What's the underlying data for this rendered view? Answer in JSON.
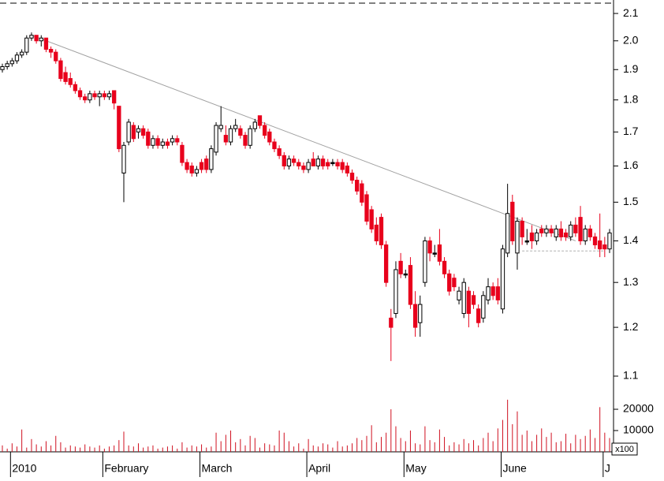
{
  "chart_data": {
    "type": "candlestick",
    "categories": [
      null,
      null,
      "2010",
      null,
      null,
      null,
      null,
      null,
      null,
      null,
      null,
      null,
      null,
      null,
      null,
      null,
      null,
      null,
      null,
      null,
      null,
      "February",
      null,
      null,
      null,
      null,
      null,
      null,
      null,
      null,
      null,
      null,
      null,
      null,
      null,
      null,
      null,
      null,
      null,
      null,
      null,
      "March",
      null,
      null,
      null,
      null,
      null,
      null,
      null,
      null,
      null,
      null,
      null,
      null,
      null,
      null,
      null,
      null,
      null,
      null,
      null,
      null,
      null,
      "April",
      null,
      null,
      null,
      null,
      null,
      null,
      null,
      null,
      null,
      null,
      null,
      null,
      null,
      null,
      null,
      null,
      null,
      null,
      null,
      "May",
      null,
      null,
      null,
      null,
      null,
      null,
      null,
      null,
      null,
      null,
      null,
      null,
      null,
      null,
      null,
      null,
      null,
      null,
      null,
      "June",
      null,
      null,
      null,
      null,
      null,
      null,
      null,
      null,
      null,
      null,
      null,
      null,
      null,
      null,
      null,
      null,
      null,
      null,
      null,
      null,
      "J",
      null
    ],
    "open": [
      1.9,
      1.91,
      1.92,
      1.93,
      1.95,
      1.96,
      2.01,
      2.02,
      2.0,
      2.01,
      1.97,
      1.96,
      1.93,
      1.89,
      1.87,
      1.85,
      1.83,
      1.81,
      1.8,
      1.82,
      1.81,
      1.82,
      1.81,
      1.83,
      1.78,
      1.58,
      1.67,
      1.72,
      1.7,
      1.71,
      1.7,
      1.66,
      1.68,
      1.66,
      1.67,
      1.67,
      1.68,
      1.66,
      1.61,
      1.6,
      1.58,
      1.61,
      1.62,
      1.59,
      1.64,
      1.71,
      1.69,
      1.67,
      1.71,
      1.71,
      1.69,
      1.66,
      1.71,
      1.75,
      1.72,
      1.7,
      1.67,
      1.65,
      1.63,
      1.6,
      1.62,
      1.61,
      1.6,
      1.59,
      1.62,
      1.6,
      1.62,
      1.61,
      1.61,
      1.61,
      1.61,
      1.6,
      1.58,
      1.56,
      1.55,
      1.52,
      1.48,
      1.44,
      1.46,
      1.39,
      1.22,
      1.23,
      1.35,
      1.32,
      1.34,
      1.25,
      1.21,
      1.3,
      1.4,
      1.37,
      1.39,
      1.35,
      1.32,
      1.31,
      1.26,
      1.23,
      1.28,
      1.27,
      1.24,
      1.22,
      1.26,
      1.29,
      1.29,
      1.24,
      1.37,
      1.5,
      1.37,
      1.45,
      1.4,
      1.42,
      1.4,
      1.43,
      1.42,
      1.43,
      1.41,
      1.43,
      1.42,
      1.41,
      1.44,
      1.46,
      1.4,
      1.43,
      1.41,
      1.4,
      1.39,
      1.38
    ],
    "high": [
      1.92,
      1.93,
      1.94,
      1.96,
      1.97,
      2.02,
      2.03,
      2.02,
      2.02,
      2.01,
      1.98,
      1.97,
      1.94,
      1.91,
      1.89,
      1.86,
      1.84,
      1.82,
      1.83,
      1.83,
      1.83,
      1.83,
      1.83,
      1.83,
      1.78,
      1.67,
      1.74,
      1.73,
      1.72,
      1.72,
      1.71,
      1.69,
      1.69,
      1.68,
      1.68,
      1.69,
      1.69,
      1.67,
      1.62,
      1.61,
      1.6,
      1.62,
      1.63,
      1.66,
      1.73,
      1.78,
      1.72,
      1.72,
      1.74,
      1.72,
      1.7,
      1.72,
      1.74,
      1.75,
      1.73,
      1.71,
      1.68,
      1.66,
      1.64,
      1.63,
      1.63,
      1.62,
      1.61,
      1.62,
      1.64,
      1.63,
      1.63,
      1.62,
      1.62,
      1.62,
      1.62,
      1.61,
      1.59,
      1.57,
      1.56,
      1.53,
      1.49,
      1.46,
      1.47,
      1.4,
      1.24,
      1.35,
      1.37,
      1.33,
      1.36,
      1.28,
      1.27,
      1.41,
      1.41,
      1.39,
      1.43,
      1.36,
      1.33,
      1.32,
      1.29,
      1.31,
      1.29,
      1.28,
      1.25,
      1.28,
      1.31,
      1.3,
      1.31,
      1.39,
      1.55,
      1.52,
      1.46,
      1.46,
      1.43,
      1.44,
      1.43,
      1.44,
      1.44,
      1.44,
      1.44,
      1.45,
      1.43,
      1.45,
      1.46,
      1.49,
      1.44,
      1.44,
      1.42,
      1.47,
      1.41,
      1.43
    ],
    "low": [
      1.89,
      1.9,
      1.91,
      1.92,
      1.94,
      1.95,
      2.0,
      1.99,
      1.98,
      1.96,
      1.94,
      1.92,
      1.86,
      1.85,
      1.84,
      1.82,
      1.8,
      1.79,
      1.79,
      1.8,
      1.78,
      1.8,
      1.8,
      1.77,
      1.64,
      1.5,
      1.66,
      1.67,
      1.68,
      1.68,
      1.65,
      1.65,
      1.65,
      1.65,
      1.65,
      1.66,
      1.66,
      1.6,
      1.58,
      1.57,
      1.57,
      1.58,
      1.58,
      1.58,
      1.63,
      1.7,
      1.66,
      1.66,
      1.7,
      1.68,
      1.65,
      1.65,
      1.7,
      1.71,
      1.68,
      1.66,
      1.64,
      1.62,
      1.59,
      1.59,
      1.6,
      1.59,
      1.58,
      1.58,
      1.6,
      1.59,
      1.59,
      1.59,
      1.6,
      1.59,
      1.58,
      1.57,
      1.55,
      1.52,
      1.49,
      1.44,
      1.42,
      1.39,
      1.38,
      1.29,
      1.13,
      1.22,
      1.31,
      1.31,
      1.24,
      1.18,
      1.18,
      1.29,
      1.35,
      1.36,
      1.34,
      1.31,
      1.27,
      1.28,
      1.25,
      1.22,
      1.2,
      1.24,
      1.2,
      1.21,
      1.25,
      1.26,
      1.25,
      1.23,
      1.36,
      1.39,
      1.33,
      1.39,
      1.39,
      1.38,
      1.39,
      1.41,
      1.41,
      1.41,
      1.4,
      1.4,
      1.4,
      1.4,
      1.41,
      1.39,
      1.39,
      1.4,
      1.38,
      1.36,
      1.36,
      1.37
    ],
    "close": [
      1.91,
      1.92,
      1.93,
      1.95,
      1.96,
      2.01,
      2.02,
      2.0,
      2.01,
      1.97,
      1.96,
      1.93,
      1.87,
      1.86,
      1.85,
      1.83,
      1.81,
      1.8,
      1.82,
      1.81,
      1.82,
      1.81,
      1.82,
      1.79,
      1.65,
      1.66,
      1.73,
      1.68,
      1.71,
      1.69,
      1.66,
      1.68,
      1.66,
      1.67,
      1.66,
      1.68,
      1.67,
      1.61,
      1.59,
      1.58,
      1.59,
      1.59,
      1.59,
      1.65,
      1.72,
      1.72,
      1.67,
      1.71,
      1.72,
      1.69,
      1.66,
      1.71,
      1.73,
      1.72,
      1.69,
      1.67,
      1.65,
      1.63,
      1.6,
      1.62,
      1.61,
      1.6,
      1.59,
      1.61,
      1.6,
      1.62,
      1.6,
      1.6,
      1.61,
      1.6,
      1.59,
      1.58,
      1.56,
      1.53,
      1.5,
      1.45,
      1.43,
      1.4,
      1.39,
      1.3,
      1.2,
      1.33,
      1.32,
      1.32,
      1.25,
      1.2,
      1.25,
      1.4,
      1.37,
      1.37,
      1.35,
      1.32,
      1.28,
      1.29,
      1.28,
      1.3,
      1.23,
      1.25,
      1.21,
      1.27,
      1.29,
      1.27,
      1.26,
      1.38,
      1.47,
      1.4,
      1.45,
      1.41,
      1.4,
      1.4,
      1.42,
      1.42,
      1.43,
      1.42,
      1.43,
      1.41,
      1.41,
      1.44,
      1.42,
      1.4,
      1.43,
      1.41,
      1.39,
      1.38,
      1.38,
      1.42
    ],
    "volume": [
      3000,
      1500,
      4000,
      2500,
      10500,
      2000,
      6000,
      3500,
      2500,
      5000,
      3000,
      7500,
      4500,
      2000,
      3000,
      2500,
      2000,
      3500,
      2500,
      2000,
      3000,
      1500,
      2500,
      3000,
      5500,
      9500,
      3000,
      2500,
      4000,
      2000,
      2500,
      3000,
      1500,
      2000,
      2500,
      3000,
      1500,
      4500,
      2000,
      3000,
      2500,
      3500,
      2000,
      2500,
      9000,
      5000,
      8000,
      10000,
      4500,
      6000,
      3000,
      7500,
      6500,
      2000,
      4000,
      3500,
      3000,
      10000,
      9000,
      5000,
      2500,
      4000,
      1500,
      6000,
      3000,
      2500,
      4000,
      3500,
      2000,
      5000,
      2500,
      3000,
      4000,
      6500,
      5500,
      7500,
      12500,
      4500,
      7000,
      9000,
      20000,
      12000,
      6500,
      5000,
      10000,
      4000,
      3500,
      12000,
      5500,
      4500,
      10500,
      7000,
      3000,
      4500,
      3500,
      6000,
      4000,
      5500,
      3000,
      6500,
      9000,
      5000,
      11000,
      15000,
      24500,
      13000,
      19000,
      8000,
      10000,
      5000,
      8000,
      11000,
      7000,
      9000,
      4500,
      5000,
      8500,
      4000,
      8000,
      6000,
      7500,
      10500,
      6500,
      21000,
      9000,
      6500
    ],
    "ylim": [
      1.065,
      2.151
    ],
    "log_scale": true,
    "yticks": [
      1.1,
      1.2,
      1.3,
      1.4,
      1.5,
      1.6,
      1.7,
      1.8,
      1.9,
      {
        "value": 2,
        "label": "2.0"
      },
      2.1
    ],
    "volume_ylim": [
      0,
      25200
    ],
    "volume_yticks": [
      10000,
      20000
    ],
    "volume_unit": "x100",
    "up_color": "#ffffff",
    "down_color": "#e8001c",
    "outline_color": "#000000",
    "volume_color": "#d01020",
    "trendline": {
      "start": [
        6,
        2.02
      ],
      "end": [
        118,
        1.4
      ],
      "color": "#a0a0a0"
    },
    "support_line": {
      "start": 107,
      "end": 124,
      "value": 1.375,
      "color": "#b0b0b0"
    }
  }
}
